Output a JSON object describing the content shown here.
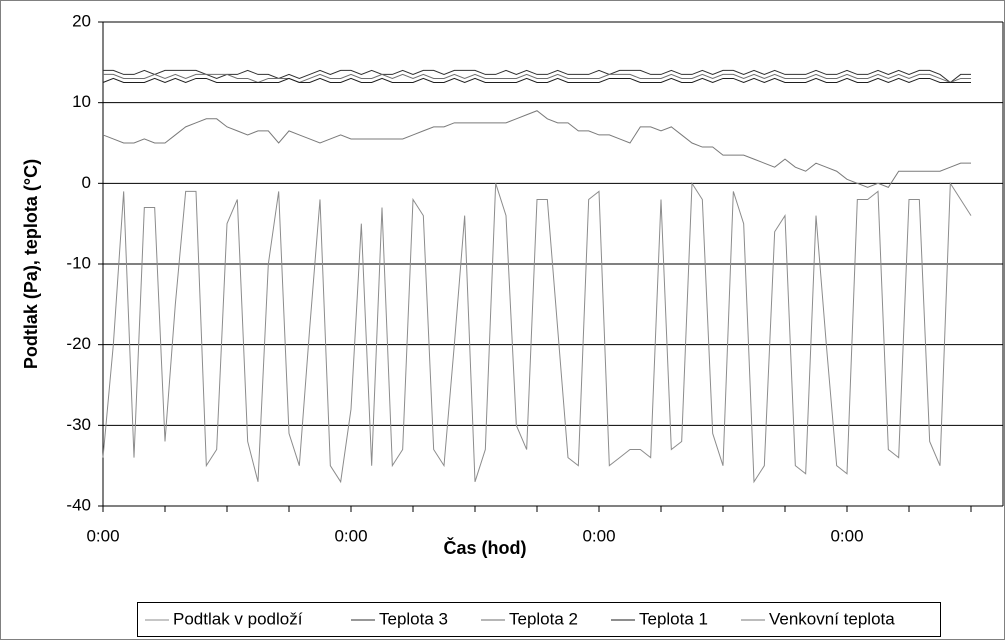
{
  "chart_data": {
    "type": "line",
    "xlabel": "Čas (hod)",
    "ylabel": "Podtlak (Pa), teplota (°C)",
    "categories": [
      "0:00",
      null,
      null,
      null,
      null,
      null,
      null,
      null,
      null,
      null,
      null,
      null,
      null,
      null,
      null,
      null,
      null,
      null,
      null,
      null,
      null,
      null,
      null,
      null,
      "0:00",
      null,
      null,
      null,
      null,
      null,
      null,
      null,
      null,
      null,
      null,
      null,
      null,
      null,
      null,
      null,
      null,
      null,
      null,
      null,
      null,
      null,
      null,
      null,
      "0:00",
      null,
      null,
      null,
      null,
      null,
      null,
      null,
      null,
      null,
      null,
      null,
      null,
      null,
      null,
      null,
      null,
      null,
      null,
      null,
      null,
      null,
      null,
      null,
      "0:00",
      null,
      null,
      null,
      null,
      null,
      null,
      null,
      null,
      null,
      null,
      null,
      null
    ],
    "ylim": [
      -40,
      20
    ],
    "yticks": [
      -40,
      -30,
      -20,
      -10,
      0,
      10,
      20
    ],
    "grid": true,
    "legend": "bottom",
    "series": [
      {
        "name": "Podtlak v podloží",
        "color": "#8c8c8c",
        "values": [
          -34,
          -20,
          -1,
          -34,
          -3,
          -3,
          -32,
          -15,
          -1,
          -1,
          -35,
          -33,
          -5,
          -2,
          -32,
          -37,
          -10,
          -1,
          -31,
          -35,
          -18,
          -2,
          -35,
          -37,
          -28,
          -5,
          -35,
          -3,
          -35,
          -33,
          -2,
          -4,
          -33,
          -35,
          -20,
          -4,
          -37,
          -33,
          0,
          -4,
          -30,
          -33,
          -2,
          -2,
          -18,
          -34,
          -35,
          -2,
          -1,
          -35,
          -34,
          -33,
          -33,
          -34,
          -2,
          -33,
          -32,
          0,
          -2,
          -31,
          -35,
          -1,
          -5,
          -37,
          -35,
          -6,
          -4,
          -35,
          -36,
          -4,
          -20,
          -35,
          -36,
          -2,
          -2,
          -1,
          -33,
          -34,
          -2,
          -2,
          -32,
          -35,
          0,
          -2,
          -4
        ]
      },
      {
        "name": "Teplota 3",
        "color": "#303030",
        "values": [
          14,
          14,
          13.5,
          13.5,
          14,
          13.5,
          14,
          14,
          14,
          14,
          13.5,
          13,
          13.5,
          13.5,
          14,
          13.5,
          13.5,
          13,
          13.5,
          13,
          13.5,
          14,
          13.5,
          14,
          14,
          13.5,
          14,
          13.5,
          13.5,
          14,
          13.5,
          14,
          14,
          13.5,
          14,
          14,
          14,
          13.5,
          13.5,
          14,
          13.5,
          14,
          13.5,
          13.5,
          14,
          13.5,
          13.5,
          13.5,
          14,
          13.5,
          14,
          14,
          14,
          13.5,
          13.5,
          14,
          13.5,
          13.5,
          14,
          13.5,
          14,
          14,
          13.5,
          14,
          13.5,
          14,
          13.5,
          13.5,
          13.5,
          14,
          13.5,
          13.5,
          14,
          13.5,
          13.5,
          14,
          13.5,
          14,
          13.5,
          14,
          14,
          13.5,
          12.5,
          13.5,
          13.5
        ]
      },
      {
        "name": "Teplota 2",
        "color": "#6e6e6e",
        "values": [
          13.5,
          13.5,
          13,
          13,
          13,
          13.5,
          13,
          13.5,
          13,
          13.5,
          13.5,
          13.5,
          13.5,
          13,
          13,
          12.5,
          13,
          13,
          13,
          12.5,
          13,
          13.5,
          13,
          13,
          13.5,
          13,
          13,
          13.5,
          13,
          13.5,
          13,
          13.5,
          13,
          13,
          13.5,
          13,
          13.5,
          13,
          13,
          13,
          13,
          13.5,
          13,
          13,
          13.5,
          13,
          13,
          13,
          13,
          13.5,
          13.5,
          13.5,
          13,
          13,
          13,
          13.5,
          13,
          13,
          13.5,
          13,
          13.5,
          13.5,
          13,
          13.5,
          13,
          13.5,
          13,
          13,
          13,
          13.5,
          13,
          13,
          13.5,
          13,
          13,
          13.5,
          13,
          13.5,
          13,
          13.5,
          13.5,
          13,
          12.5,
          13,
          13
        ]
      },
      {
        "name": "Teplota 1",
        "color": "#1e1e1e",
        "values": [
          12.5,
          13,
          12.5,
          12.5,
          12.5,
          13,
          12.5,
          13,
          12.5,
          13,
          13,
          12.5,
          12.5,
          12.5,
          12.5,
          12.5,
          12.5,
          12.5,
          13,
          12.5,
          12.5,
          13,
          12.5,
          12.5,
          13,
          12.5,
          12.5,
          13,
          12.5,
          12.5,
          12.5,
          13,
          12.5,
          12.5,
          13,
          12.5,
          13,
          12.5,
          12.5,
          12.5,
          12.5,
          13,
          12.5,
          12.5,
          13,
          12.5,
          12.5,
          12.5,
          12.5,
          13,
          13,
          13,
          12.5,
          12.5,
          12.5,
          13,
          12.5,
          12.5,
          13,
          12.5,
          13,
          13,
          12.5,
          13,
          12.5,
          13,
          12.5,
          12.5,
          12.5,
          13,
          12.5,
          12.5,
          13,
          12.5,
          12.5,
          13,
          12.5,
          13,
          12.5,
          13,
          13,
          12.5,
          12.5,
          12.5,
          12.5
        ]
      },
      {
        "name": "Venkovní teplota",
        "color": "#7a7a7a",
        "values": [
          6,
          5.5,
          5,
          5,
          5.5,
          5,
          5,
          6,
          7,
          7.5,
          8,
          8,
          7,
          6.5,
          6,
          6.5,
          6.5,
          5,
          6.5,
          6,
          5.5,
          5,
          5.5,
          6,
          5.5,
          5.5,
          5.5,
          5.5,
          5.5,
          5.5,
          6,
          6.5,
          7,
          7,
          7.5,
          7.5,
          7.5,
          7.5,
          7.5,
          7.5,
          8,
          8.5,
          9,
          8,
          7.5,
          7.5,
          6.5,
          6.5,
          6,
          6,
          5.5,
          5,
          7,
          7,
          6.5,
          7,
          6,
          5,
          4.5,
          4.5,
          3.5,
          3.5,
          3.5,
          3,
          2.5,
          2,
          3,
          2,
          1.5,
          2.5,
          2,
          1.5,
          0.5,
          0,
          -0.5,
          0,
          -0.5,
          1.5,
          1.5,
          1.5,
          1.5,
          1.5,
          2,
          2.5,
          2.5
        ]
      }
    ]
  }
}
